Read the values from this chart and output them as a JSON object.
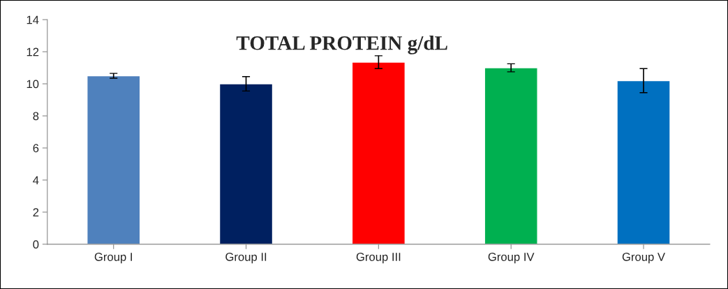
{
  "chart_data": {
    "type": "bar",
    "title": "TOTAL PROTEIN g/dL",
    "categories": [
      "Group I",
      "Group II",
      "Group III",
      "Group IV",
      "Group V"
    ],
    "values": [
      10.5,
      10.0,
      11.35,
      11.0,
      10.2
    ],
    "errors": [
      0.15,
      0.45,
      0.4,
      0.25,
      0.75
    ],
    "colors": [
      "#4f81bd",
      "#002060",
      "#ff0000",
      "#00b050",
      "#0070c0"
    ],
    "ylim": [
      0,
      14
    ],
    "yticks": [
      0,
      2,
      4,
      6,
      8,
      10,
      12,
      14
    ],
    "grid": false
  }
}
